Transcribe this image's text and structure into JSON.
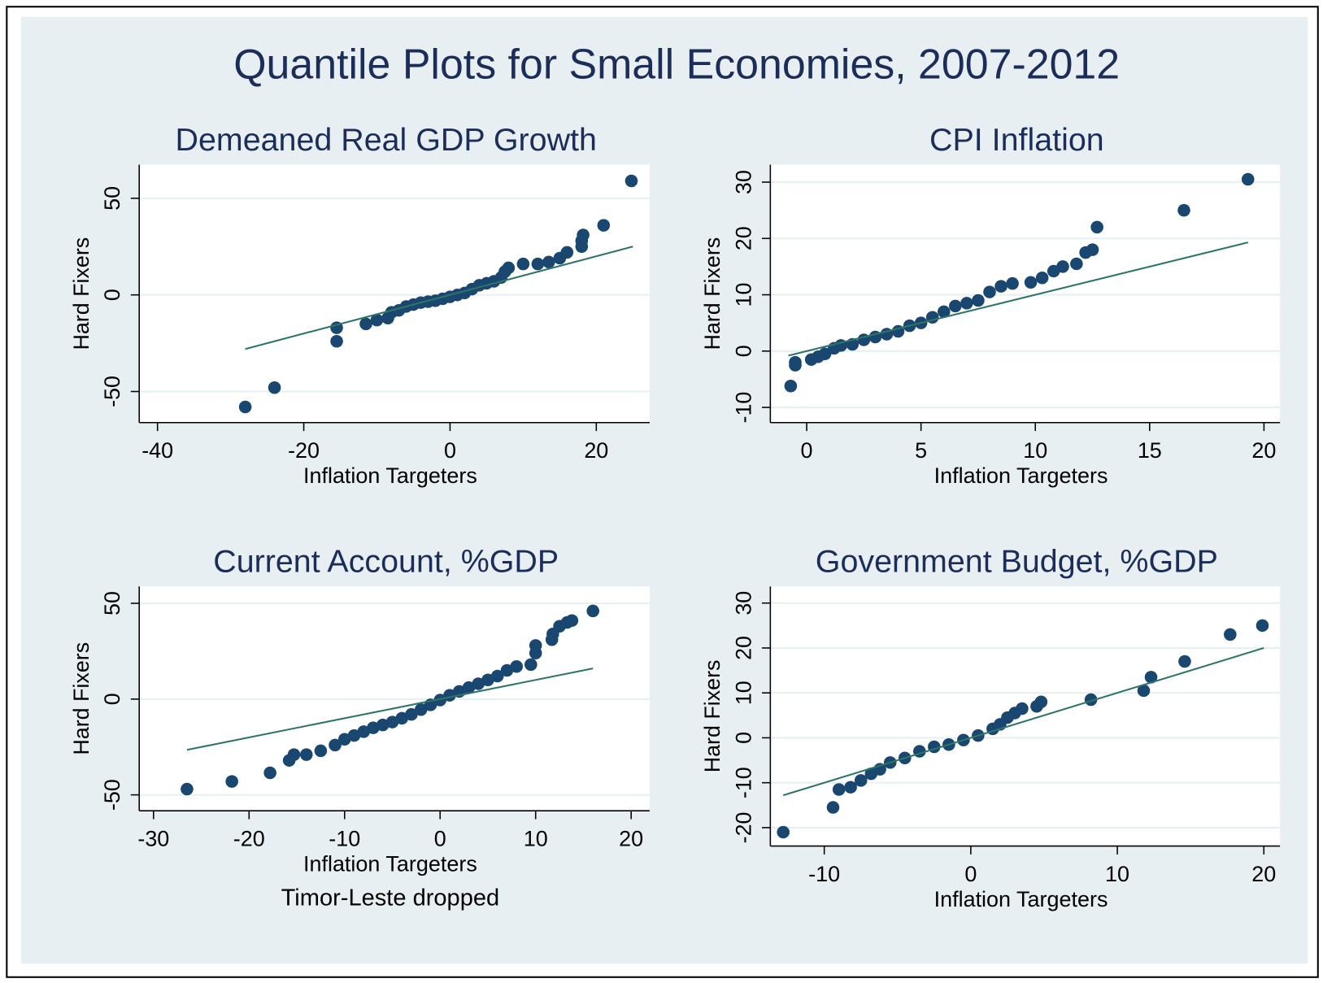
{
  "title": "Quantile Plots for Small Economies, 2007-2012",
  "chart_data": [
    {
      "type": "scatter",
      "title": "Demeaned Real GDP Growth",
      "x_label": "Inflation Targeters",
      "y_label": "Hard Fixers",
      "xlim": [
        -42.5,
        27.3
      ],
      "ylim": [
        -66.1,
        67.4
      ],
      "xticks": [
        -40,
        -20,
        0,
        20
      ],
      "yticks": [
        -50,
        0,
        50
      ],
      "grid": true,
      "series": [
        {
          "type": "scatter",
          "color": "#1a476f",
          "x": [
            -28,
            -24,
            -15.5,
            -15.5,
            -11.5,
            -10,
            -8.5,
            -8,
            -7,
            -6,
            -5,
            -4,
            -3,
            -2,
            -1,
            0,
            1,
            2,
            3,
            4,
            5,
            6,
            7,
            7.5,
            8,
            10,
            12,
            13.5,
            15,
            16,
            18,
            18,
            18.2,
            21,
            24.8
          ],
          "values": [
            -58,
            -48,
            -24,
            -17,
            -15,
            -13,
            -12,
            -9,
            -8,
            -6,
            -5,
            -4,
            -3.5,
            -3,
            -2,
            -1,
            0,
            1,
            3,
            5,
            6,
            7,
            9,
            12,
            14,
            16,
            16,
            17,
            19,
            22,
            25,
            28,
            31,
            36,
            59
          ]
        },
        {
          "type": "line",
          "color": "#2e7468",
          "x": [
            -28,
            25
          ],
          "values": [
            -28,
            25
          ]
        }
      ]
    },
    {
      "type": "scatter",
      "title": "CPI Inflation",
      "x_label": "Inflation Targeters",
      "y_label": "Hard Fixers",
      "xlim": [
        -1.59,
        20.7
      ],
      "ylim": [
        -12.7,
        33.1
      ],
      "xticks": [
        0,
        5,
        10,
        15,
        20
      ],
      "yticks": [
        -10,
        0,
        10,
        20,
        30
      ],
      "grid": true,
      "series": [
        {
          "type": "scatter",
          "color": "#1a476f",
          "x": [
            -0.7,
            -0.5,
            -0.5,
            0.2,
            0.5,
            0.8,
            1.2,
            1.5,
            2,
            2.5,
            3,
            3.5,
            4,
            4.5,
            5,
            5.5,
            6,
            6.5,
            7,
            7.5,
            8,
            8.5,
            9,
            9.8,
            10.3,
            10.8,
            11.2,
            11.8,
            12.2,
            12.5,
            12.7,
            16.5,
            19.3
          ],
          "values": [
            -6.2,
            -2.5,
            -2,
            -1.5,
            -1,
            -0.5,
            0.5,
            1,
            1.2,
            2,
            2.5,
            3,
            3.5,
            4.5,
            5,
            6,
            7,
            8,
            8.5,
            9,
            10.5,
            11.5,
            12,
            12.2,
            13,
            14.2,
            15,
            15.5,
            17.5,
            18,
            22,
            25,
            30.5
          ]
        },
        {
          "type": "line",
          "color": "#2e7468",
          "x": [
            -0.8,
            19.3
          ],
          "values": [
            -0.8,
            19.3
          ]
        }
      ]
    },
    {
      "type": "scatter",
      "title": "Current Account, %GDP",
      "x_label": "Inflation Targeters",
      "y_label": "Hard Fixers",
      "note": "Timor-Leste dropped",
      "xlim": [
        -31.5,
        21.94
      ],
      "ylim": [
        -58.3,
        58.8
      ],
      "xticks": [
        -30,
        -20,
        -10,
        0,
        10,
        20
      ],
      "yticks": [
        -50,
        0,
        50
      ],
      "grid": true,
      "series": [
        {
          "type": "scatter",
          "color": "#1a476f",
          "x": [
            -26.5,
            -21.8,
            -17.8,
            -15.8,
            -15.3,
            -14,
            -12.5,
            -11,
            -10,
            -9,
            -8,
            -7,
            -6,
            -5,
            -4,
            -3,
            -2,
            -1,
            0,
            1,
            2,
            3,
            4,
            5,
            6,
            7,
            8,
            9.5,
            10,
            10,
            11.7,
            11.8,
            12.5,
            13.3,
            13.8,
            16
          ],
          "values": [
            -47,
            -43,
            -38.5,
            -32,
            -29,
            -29,
            -27,
            -24,
            -21,
            -19,
            -17,
            -15,
            -13.5,
            -12,
            -10,
            -8,
            -5.5,
            -3,
            -0.5,
            2,
            4,
            6,
            8,
            10,
            12,
            15,
            17,
            18,
            24,
            28,
            31,
            34,
            38,
            40,
            41,
            46
          ]
        },
        {
          "type": "line",
          "color": "#2e7468",
          "x": [
            -26.5,
            16
          ],
          "values": [
            -26.5,
            16
          ]
        }
      ]
    },
    {
      "type": "scatter",
      "title": "Government Budget, %GDP",
      "x_label": "Inflation Targeters",
      "y_label": "Hard Fixers",
      "xlim": [
        -13.68,
        21.1
      ],
      "ylim": [
        -24.1,
        33.7
      ],
      "xticks": [
        -10,
        0,
        10,
        20
      ],
      "yticks": [
        -20,
        -10,
        0,
        10,
        20,
        30
      ],
      "grid": true,
      "series": [
        {
          "type": "scatter",
          "color": "#1a476f",
          "x": [
            -12.8,
            -9.4,
            -9,
            -8.2,
            -7.5,
            -6.8,
            -6.2,
            -5.5,
            -4.5,
            -3.5,
            -2.5,
            -1.5,
            -0.5,
            0.5,
            1.5,
            2,
            2.5,
            3,
            3.5,
            4.5,
            4.8,
            8.2,
            11.8,
            12.3,
            14.6,
            17.7,
            19.9
          ],
          "values": [
            -21,
            -15.5,
            -11.5,
            -11,
            -9.5,
            -8,
            -7,
            -5.5,
            -4.5,
            -3,
            -2,
            -1.5,
            -0.5,
            0.5,
            2,
            3,
            4.5,
            5.5,
            6.5,
            7,
            8,
            8.5,
            10.5,
            13.5,
            17,
            23,
            25
          ]
        },
        {
          "type": "line",
          "color": "#2e7468",
          "x": [
            -12.8,
            20
          ],
          "values": [
            -12.8,
            20
          ]
        }
      ]
    }
  ]
}
